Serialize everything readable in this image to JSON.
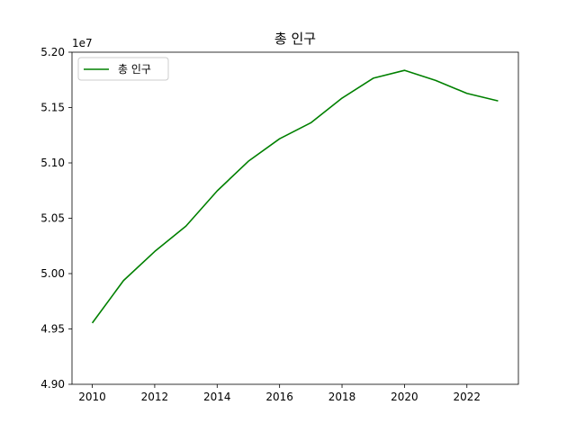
{
  "chart_data": {
    "type": "line",
    "title": "총 인구",
    "xlabel": "",
    "ylabel": "",
    "y_offset_label": "1e7",
    "x": [
      2010,
      2011,
      2012,
      2013,
      2014,
      2015,
      2016,
      2017,
      2018,
      2019,
      2020,
      2021,
      2022,
      2023
    ],
    "series": [
      {
        "name": "총 인구",
        "color": "#008000",
        "values": [
          49554000,
          49937000,
          50200000,
          50429000,
          50747000,
          51015000,
          51218000,
          51362000,
          51585000,
          51765000,
          51836000,
          51745000,
          51628000,
          51560000
        ]
      }
    ],
    "xlim": [
      2009.35,
      2023.65
    ],
    "ylim": [
      49000000,
      52000000
    ],
    "x_ticks": [
      2010,
      2012,
      2014,
      2016,
      2018,
      2020,
      2022
    ],
    "y_ticks": [
      49000000,
      49500000,
      50000000,
      50500000,
      51000000,
      51500000,
      52000000
    ],
    "y_tick_labels": [
      "4.90",
      "4.95",
      "5.00",
      "5.05",
      "5.10",
      "5.15",
      "5.20"
    ],
    "grid": false,
    "legend_position": "upper left"
  }
}
